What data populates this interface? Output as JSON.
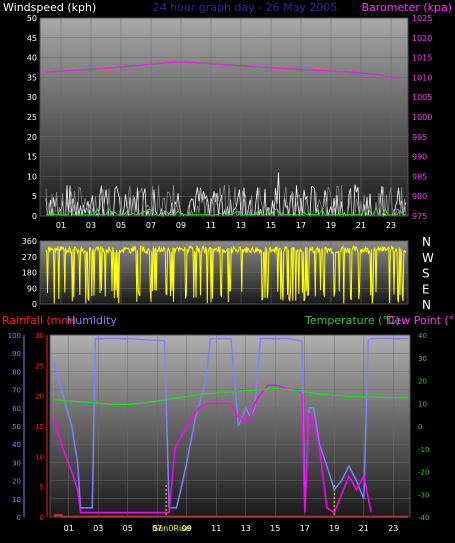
{
  "chart_data": [
    {
      "type": "line",
      "labels": {
        "left": "Windspeed (kph)",
        "center": "24 hour graph day - 26 May 2005",
        "right": "Barometer (kpa)"
      },
      "x_ticks": [
        "01",
        "03",
        "05",
        "07",
        "09",
        "11",
        "13",
        "15",
        "17",
        "19",
        "21",
        "23"
      ],
      "y_left": {
        "ylim": [
          0,
          50
        ],
        "ticks": [
          "0",
          "5",
          "10",
          "15",
          "20",
          "25",
          "30",
          "35",
          "40",
          "45",
          "50"
        ]
      },
      "y_right": {
        "ylim": [
          975,
          1025
        ],
        "ticks": [
          "975",
          "980",
          "985",
          "990",
          "995",
          "1000",
          "1005",
          "1010",
          "1015",
          "1020",
          "1025"
        ]
      },
      "series": [
        {
          "axis": "right",
          "color": "#cc33cc",
          "x": [
            0,
            2,
            4,
            6,
            8,
            9,
            10,
            12,
            14,
            16,
            18,
            20,
            22,
            23.5
          ],
          "y": [
            1011.3,
            1011.8,
            1012.3,
            1013.0,
            1013.7,
            1013.9,
            1013.7,
            1013.2,
            1012.7,
            1012.2,
            1011.8,
            1011.4,
            1010.8,
            1009.8
          ]
        }
      ],
      "wind_band": {
        "axis": "left",
        "max": 8,
        "gust_peak": 11,
        "colors": [
          "#ffffff",
          "#888888",
          "#33cc33"
        ]
      }
    },
    {
      "type": "scatter",
      "y_left_ticks": [
        "0",
        "90",
        "180",
        "270",
        "360"
      ],
      "ylim": [
        0,
        360
      ],
      "compass": [
        "N",
        "W",
        "S",
        "E",
        "N"
      ],
      "color": "#ffff00",
      "baseline": 310
    },
    {
      "type": "line",
      "labels": {
        "rainfall": "Rainfall (mm)",
        "humidity": "Humidity",
        "temperature": "Temperature (°C)",
        "dew_point": "Dew Point (°C)"
      },
      "x_ticks": [
        "01",
        "03",
        "05",
        "07",
        "09",
        "11",
        "13",
        "15",
        "17",
        "19",
        "21",
        "23"
      ],
      "markers": {
        "sunrise": "Sun",
        "rise": "Rise",
        "set": "0"
      },
      "y_hum": {
        "ylim": [
          0,
          100
        ],
        "ticks": [
          "0",
          "10",
          "20",
          "30",
          "40",
          "50",
          "60",
          "70",
          "80",
          "90",
          "100"
        ]
      },
      "y_rain": {
        "ylim": [
          0,
          30
        ],
        "ticks": [
          "0",
          "5",
          "10",
          "15",
          "20",
          "25",
          "30"
        ]
      },
      "y_temp": {
        "ylim": [
          -40,
          40
        ],
        "ticks": [
          "-40",
          "-30",
          "-20",
          "-10",
          "0",
          "10",
          "20",
          "30",
          "40"
        ]
      },
      "series": [
        {
          "key": "humidity",
          "color": "#8080ff",
          "axis": "hum",
          "x": [
            0,
            0.5,
            1.2,
            1.6,
            1.8,
            2.0,
            2.3,
            2.6,
            2.8,
            3.0,
            5,
            7,
            7.5,
            7.8,
            8.0,
            8.3,
            8.6,
            9,
            9.6,
            10.3,
            10.6,
            11,
            12,
            12.5,
            13,
            13.3,
            13.6,
            14,
            14.5,
            15,
            16,
            16.5,
            16.8,
            17.0,
            17.3,
            17.6,
            18,
            18.5,
            19,
            19.5,
            20,
            20.5,
            21,
            21.3,
            21.5,
            22,
            24
          ],
          "y": [
            85,
            70,
            50,
            30,
            5,
            5,
            5,
            5,
            98,
            98,
            98,
            97,
            97,
            5,
            5,
            5,
            15,
            30,
            55,
            75,
            98,
            98,
            98,
            50,
            60,
            55,
            60,
            98,
            98,
            98,
            98,
            97,
            97,
            5,
            60,
            60,
            40,
            28,
            15,
            20,
            28,
            20,
            10,
            97,
            98,
            98,
            98
          ]
        },
        {
          "key": "dew_point",
          "color": "#ff00ff",
          "axis": "temp",
          "x": [
            0,
            0.6,
            1.2,
            1.6,
            1.8,
            2.6,
            2.9,
            5,
            7,
            7.5,
            7.8,
            8.2,
            8.6,
            9,
            9.8,
            10.5,
            11,
            12,
            12.5,
            13,
            13.3,
            13.6,
            14,
            14.5,
            15,
            16,
            16.5,
            16.8,
            17.0,
            17.3,
            17.6,
            18,
            18.5,
            19,
            19.5,
            20,
            20.5,
            21,
            21.5
          ],
          "y": [
            3,
            -10,
            -20,
            -28,
            -38,
            -38,
            -38,
            -38,
            -38,
            -38,
            -38,
            -10,
            -5,
            0,
            8,
            10,
            10,
            10,
            4,
            2,
            4,
            10,
            14,
            18,
            18,
            16,
            16,
            14,
            -38,
            5,
            2,
            -10,
            -36,
            -38,
            -30,
            -22,
            -28,
            -22,
            -38
          ]
        },
        {
          "key": "temperature",
          "color": "#33cc33",
          "axis": "temp",
          "x": [
            0,
            1,
            2,
            3,
            4,
            5,
            6,
            7,
            8,
            9,
            10,
            11,
            12,
            13,
            14,
            15,
            16,
            17,
            18,
            19,
            20,
            21,
            22,
            23,
            24
          ],
          "y": [
            11.5,
            11,
            10.5,
            10,
            9.5,
            9.5,
            10,
            11,
            12,
            13,
            14,
            14.5,
            15,
            15.5,
            16,
            16.5,
            16,
            15,
            14,
            13.5,
            13,
            12.8,
            12.6,
            12.5,
            12.5
          ]
        },
        {
          "key": "rainfall",
          "color": "#ff2020",
          "axis": "rain",
          "x": [
            0,
            0.5,
            0.6,
            24
          ],
          "y": [
            0.3,
            0.3,
            0.05,
            0.05
          ]
        }
      ]
    }
  ]
}
